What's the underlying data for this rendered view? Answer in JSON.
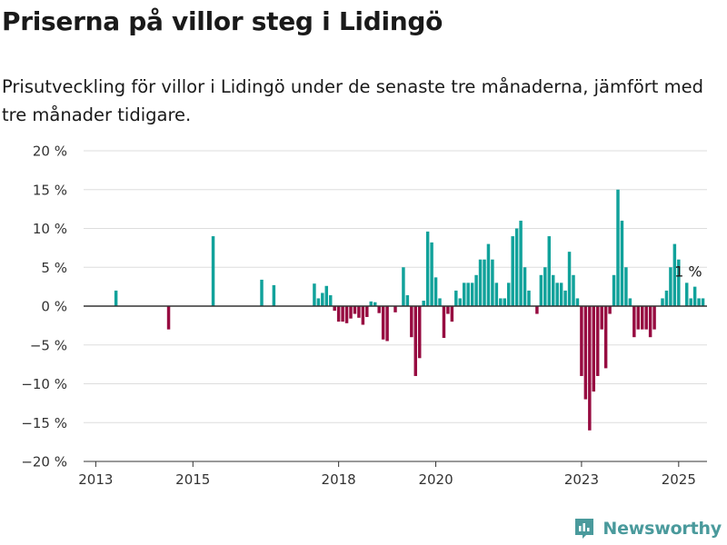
{
  "title": "Priserna på villor steg i Lidingö",
  "subtitle": "Prisutveckling för villor i Lidingö under de senaste tre månaderna, jämfört med tre månader tidigare.",
  "brand": {
    "name": "Newsworthy",
    "icon": "newsworthy-logo-icon"
  },
  "colors": {
    "positive": "#11a29b",
    "negative": "#970c41",
    "grid": "#dddddd",
    "axis": "#333333",
    "text": "#333333"
  },
  "chart_data": {
    "type": "bar",
    "title": "Priserna på villor steg i Lidingö",
    "xlabel": "",
    "ylabel": "",
    "ylim": [
      -20,
      20
    ],
    "xlim": [
      "2012-10",
      "2025-08"
    ],
    "y_unit": "%",
    "yticks": [
      -20,
      -15,
      -10,
      -5,
      0,
      5,
      10,
      15,
      20
    ],
    "ytick_labels": [
      "−20 %",
      "−15 %",
      "−10 %",
      "−5 %",
      "0 %",
      "5 %",
      "10 %",
      "15 %",
      "20 %"
    ],
    "xticks": [
      "2013-01",
      "2015-01",
      "2018-01",
      "2020-01",
      "2023-01",
      "2025-01"
    ],
    "xtick_labels": [
      "2013",
      "2015",
      "2018",
      "2020",
      "2023",
      "2025"
    ],
    "grid": true,
    "annotation": {
      "x": "2024-12",
      "y": 1,
      "text": "1 %"
    },
    "series": [
      {
        "points": [
          {
            "x": "2013-06",
            "y": 2
          },
          {
            "x": "2014-07",
            "y": -3
          },
          {
            "x": "2015-06",
            "y": 9
          },
          {
            "x": "2016-06",
            "y": 3.4
          },
          {
            "x": "2016-09",
            "y": 2.7
          },
          {
            "x": "2017-07",
            "y": 2.9
          },
          {
            "x": "2017-08",
            "y": 1
          },
          {
            "x": "2017-09",
            "y": 1.7
          },
          {
            "x": "2017-10",
            "y": 2.6
          },
          {
            "x": "2017-11",
            "y": 1.4
          },
          {
            "x": "2017-12",
            "y": -0.6
          },
          {
            "x": "2018-01",
            "y": -2
          },
          {
            "x": "2018-02",
            "y": -2
          },
          {
            "x": "2018-03",
            "y": -2.2
          },
          {
            "x": "2018-04",
            "y": -1.6
          },
          {
            "x": "2018-05",
            "y": -1
          },
          {
            "x": "2018-06",
            "y": -1.5
          },
          {
            "x": "2018-07",
            "y": -2.4
          },
          {
            "x": "2018-08",
            "y": -1.4
          },
          {
            "x": "2018-09",
            "y": 0.6
          },
          {
            "x": "2018-10",
            "y": 0.5
          },
          {
            "x": "2018-11",
            "y": -0.9
          },
          {
            "x": "2018-12",
            "y": -4.3
          },
          {
            "x": "2019-01",
            "y": -4.5
          },
          {
            "x": "2019-03",
            "y": -0.8
          },
          {
            "x": "2019-05",
            "y": 5
          },
          {
            "x": "2019-06",
            "y": 1.4
          },
          {
            "x": "2019-07",
            "y": -4
          },
          {
            "x": "2019-08",
            "y": -9
          },
          {
            "x": "2019-09",
            "y": -6.7
          },
          {
            "x": "2019-10",
            "y": 0.7
          },
          {
            "x": "2019-11",
            "y": 9.6
          },
          {
            "x": "2019-12",
            "y": 8.2
          },
          {
            "x": "2020-01",
            "y": 3.7
          },
          {
            "x": "2020-02",
            "y": 1
          },
          {
            "x": "2020-03",
            "y": -4.1
          },
          {
            "x": "2020-04",
            "y": -1
          },
          {
            "x": "2020-05",
            "y": -2
          },
          {
            "x": "2020-06",
            "y": 2
          },
          {
            "x": "2020-07",
            "y": 1
          },
          {
            "x": "2020-08",
            "y": 3
          },
          {
            "x": "2020-09",
            "y": 3
          },
          {
            "x": "2020-10",
            "y": 3
          },
          {
            "x": "2020-11",
            "y": 4
          },
          {
            "x": "2020-12",
            "y": 6
          },
          {
            "x": "2021-01",
            "y": 6
          },
          {
            "x": "2021-02",
            "y": 8
          },
          {
            "x": "2021-03",
            "y": 6
          },
          {
            "x": "2021-04",
            "y": 3
          },
          {
            "x": "2021-05",
            "y": 1
          },
          {
            "x": "2021-06",
            "y": 1
          },
          {
            "x": "2021-07",
            "y": 3
          },
          {
            "x": "2021-08",
            "y": 9
          },
          {
            "x": "2021-09",
            "y": 10
          },
          {
            "x": "2021-10",
            "y": 11
          },
          {
            "x": "2021-11",
            "y": 5
          },
          {
            "x": "2021-12",
            "y": 2
          },
          {
            "x": "2022-02",
            "y": -1
          },
          {
            "x": "2022-03",
            "y": 4
          },
          {
            "x": "2022-04",
            "y": 5
          },
          {
            "x": "2022-05",
            "y": 9
          },
          {
            "x": "2022-06",
            "y": 4
          },
          {
            "x": "2022-07",
            "y": 3
          },
          {
            "x": "2022-08",
            "y": 3
          },
          {
            "x": "2022-09",
            "y": 2
          },
          {
            "x": "2022-10",
            "y": 7
          },
          {
            "x": "2022-11",
            "y": 4
          },
          {
            "x": "2022-12",
            "y": 1
          },
          {
            "x": "2023-01",
            "y": -9
          },
          {
            "x": "2023-02",
            "y": -12
          },
          {
            "x": "2023-03",
            "y": -16
          },
          {
            "x": "2023-04",
            "y": -11
          },
          {
            "x": "2023-05",
            "y": -9
          },
          {
            "x": "2023-06",
            "y": -3
          },
          {
            "x": "2023-07",
            "y": -8
          },
          {
            "x": "2023-08",
            "y": -1
          },
          {
            "x": "2023-09",
            "y": 4
          },
          {
            "x": "2023-10",
            "y": 15
          },
          {
            "x": "2023-11",
            "y": 11
          },
          {
            "x": "2023-12",
            "y": 5
          },
          {
            "x": "2024-01",
            "y": 1
          },
          {
            "x": "2024-02",
            "y": -4
          },
          {
            "x": "2024-03",
            "y": -3
          },
          {
            "x": "2024-04",
            "y": -3
          },
          {
            "x": "2024-05",
            "y": -3
          },
          {
            "x": "2024-06",
            "y": -4
          },
          {
            "x": "2024-07",
            "y": -3
          },
          {
            "x": "2024-09",
            "y": 1
          },
          {
            "x": "2024-10",
            "y": 2
          },
          {
            "x": "2024-11",
            "y": 5
          },
          {
            "x": "2024-12",
            "y": 8
          },
          {
            "x": "2025-01",
            "y": 6
          },
          {
            "x": "2025-03",
            "y": 3
          },
          {
            "x": "2025-04",
            "y": 1
          },
          {
            "x": "2025-05",
            "y": 2.5
          },
          {
            "x": "2025-06",
            "y": 1
          },
          {
            "x": "2025-07",
            "y": 1
          }
        ]
      }
    ]
  }
}
